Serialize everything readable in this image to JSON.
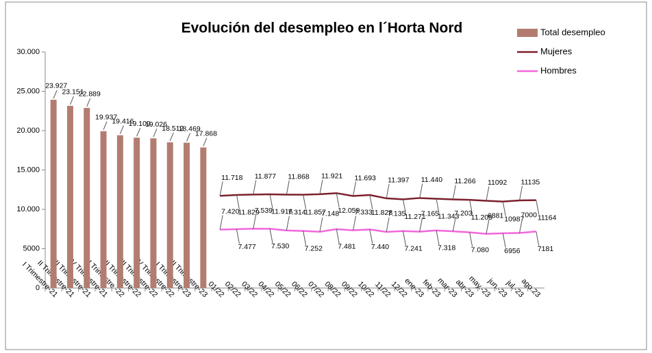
{
  "chart_data": {
    "type": "bar_line",
    "title": "Evolución del desempleo en l´Horta Nord",
    "categories": [
      "I Trimestre-21",
      "II Trimestre-21",
      "III Trimestre-21",
      "IV Trimestre-21",
      "I Trimestre -22",
      "II Trimestre-22",
      "III Trimestre-22",
      "IV Trimestre-22",
      "I Trimestre-23",
      "II Trimestre-23",
      "01/22",
      "02/22",
      "03/22",
      "04/22",
      "05/22",
      "06/22",
      "07/22",
      "08/22",
      "09/22",
      "10/22",
      "11/22",
      "12/22",
      "ene-23",
      "feb-23",
      "mar-23",
      "abr-23",
      "may.-23",
      "jun.-23",
      "jul.-23",
      "ago.23"
    ],
    "series": [
      {
        "name": "Total desempleo",
        "kind": "bar",
        "color": "#b27d70",
        "values": [
          23927,
          23151,
          22889,
          19937,
          19416,
          19109,
          19026,
          18512,
          18469,
          17868,
          null,
          null,
          null,
          null,
          null,
          null,
          null,
          null,
          null,
          null,
          null,
          null,
          null,
          null,
          null,
          null,
          null,
          null,
          null,
          null
        ],
        "value_labels": [
          "23.927",
          "23.151",
          "22.889",
          "19.937",
          "19.416",
          "19.109",
          "19.026",
          "18.512",
          "18.469",
          "17.868",
          null,
          null,
          null,
          null,
          null,
          null,
          null,
          null,
          null,
          null,
          null,
          null,
          null,
          null,
          null,
          null,
          null,
          null,
          null,
          null
        ]
      },
      {
        "name": "Mujeres",
        "kind": "line",
        "color": "#7b1f2c",
        "values": [
          null,
          null,
          null,
          null,
          null,
          null,
          null,
          null,
          null,
          null,
          11718,
          11829,
          11877,
          11916,
          11868,
          11857,
          11921,
          12059,
          11693,
          11828,
          11397,
          11271,
          11440,
          11343,
          11266,
          11205,
          11092,
          10987,
          11135,
          11164
        ],
        "value_labels": [
          null,
          null,
          null,
          null,
          null,
          null,
          null,
          null,
          null,
          null,
          "11.718",
          "11.829",
          "11.877",
          "11.916",
          "11.868",
          "11.857",
          "11.921",
          "12.059",
          "11.693",
          "11.828",
          "11.397",
          "11.271",
          "11.440",
          "11.343",
          "11.266",
          "11.205",
          "11092",
          "10987",
          "11135",
          "11164"
        ]
      },
      {
        "name": "Hombres",
        "kind": "line",
        "color": "#f266dc",
        "values": [
          null,
          null,
          null,
          null,
          null,
          null,
          null,
          null,
          null,
          null,
          7420,
          7477,
          7539,
          7530,
          7314,
          7252,
          7148,
          7481,
          7333,
          7440,
          7135,
          7241,
          7165,
          7318,
          7203,
          7080,
          6881,
          6956,
          7000,
          7181
        ],
        "value_labels": [
          null,
          null,
          null,
          null,
          null,
          null,
          null,
          null,
          null,
          null,
          "7.420",
          "7.477",
          "7.539",
          "7.530",
          "7.314",
          "7.252",
          "7.148",
          "7.481",
          "7.333",
          "7.440",
          "7.135",
          "7.241",
          "7.165",
          "7.318",
          "7.203",
          "7.080",
          "6881",
          "6956",
          "7000",
          "7181"
        ]
      }
    ],
    "ylim": [
      0,
      30000
    ],
    "yticks": [
      0,
      5000,
      {
        "value": 10000,
        "label": "10.000"
      },
      {
        "value": 15000,
        "label": "15.000"
      },
      {
        "value": 20000,
        "label": "20.000"
      },
      {
        "value": 25000,
        "label": "25.000"
      },
      {
        "value": 30000,
        "label": "30.000"
      }
    ],
    "legend": "top-right"
  }
}
